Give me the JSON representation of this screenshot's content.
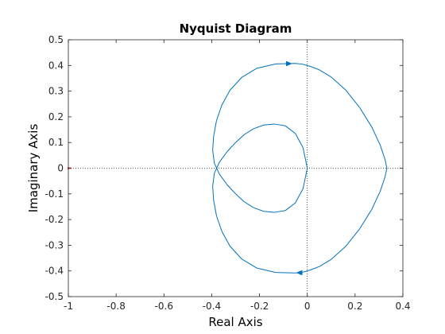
{
  "chart_data": {
    "type": "line",
    "title": "Nyquist Diagram",
    "xlabel": "Real Axis",
    "ylabel": "Imaginary Axis",
    "xlim": [
      -1,
      0.4
    ],
    "ylim": [
      -0.5,
      0.5
    ],
    "xticks": [
      -1,
      -0.8,
      -0.6,
      -0.4,
      -0.2,
      0,
      0.2,
      0.4
    ],
    "xtick_labels": [
      "-1",
      "-0.8",
      "-0.6",
      "-0.4",
      "-0.2",
      "0",
      "0.2",
      "0.4"
    ],
    "yticks": [
      -0.5,
      -0.4,
      -0.3,
      -0.2,
      -0.1,
      0,
      0.1,
      0.2,
      0.3,
      0.4,
      0.5
    ],
    "ytick_labels": [
      "-0.5",
      "-0.4",
      "-0.3",
      "-0.2",
      "-0.1",
      "0",
      "0.1",
      "0.2",
      "0.3",
      "0.4",
      "0.5"
    ],
    "grid": false,
    "reference_lines": {
      "x": 0,
      "y": 0,
      "style": "dotted"
    },
    "critical_point": {
      "x": -1,
      "y": 0,
      "color": "#ff0000",
      "marker": "+"
    },
    "series": [
      {
        "color": "#0072BD",
        "x": [
          0.0,
          -0.018,
          -0.05,
          -0.092,
          -0.138,
          -0.183,
          -0.226,
          -0.265,
          -0.3,
          -0.335,
          -0.368,
          -0.389,
          -0.396,
          -0.392,
          -0.38,
          -0.358,
          -0.324,
          -0.275,
          -0.211,
          -0.132,
          -0.05,
          -0.02,
          0.01,
          0.05,
          0.1,
          0.16,
          0.22,
          0.27,
          0.305,
          0.325,
          0.333,
          0.325,
          0.305,
          0.27,
          0.22,
          0.16,
          0.1,
          0.05,
          0.01,
          -0.02,
          -0.05,
          -0.132,
          -0.211,
          -0.275,
          -0.324,
          -0.358,
          -0.38,
          -0.392,
          -0.396,
          -0.389,
          -0.368,
          -0.335,
          -0.3,
          -0.265,
          -0.226,
          -0.183,
          -0.138,
          -0.092,
          -0.05,
          -0.018,
          0.0
        ],
        "y": [
          0.0,
          -0.08,
          -0.135,
          -0.165,
          -0.172,
          -0.168,
          -0.153,
          -0.13,
          -0.1,
          -0.065,
          -0.023,
          0.02,
          0.07,
          0.125,
          0.185,
          0.245,
          0.303,
          0.353,
          0.389,
          0.406,
          0.408,
          0.405,
          0.397,
          0.383,
          0.355,
          0.305,
          0.235,
          0.16,
          0.09,
          0.035,
          0.0,
          -0.035,
          -0.09,
          -0.16,
          -0.235,
          -0.305,
          -0.355,
          -0.383,
          -0.397,
          -0.405,
          -0.408,
          -0.406,
          -0.389,
          -0.353,
          -0.303,
          -0.245,
          -0.185,
          -0.125,
          -0.07,
          -0.02,
          0.023,
          0.065,
          0.1,
          0.13,
          0.153,
          0.168,
          0.172,
          0.165,
          0.135,
          0.08,
          0.0
        ]
      }
    ],
    "direction_arrows": [
      {
        "x": -0.065,
        "y": 0.407,
        "dx": 1,
        "dy": 0
      },
      {
        "x": -0.045,
        "y": -0.407,
        "dx": -1,
        "dy": 0
      }
    ]
  }
}
